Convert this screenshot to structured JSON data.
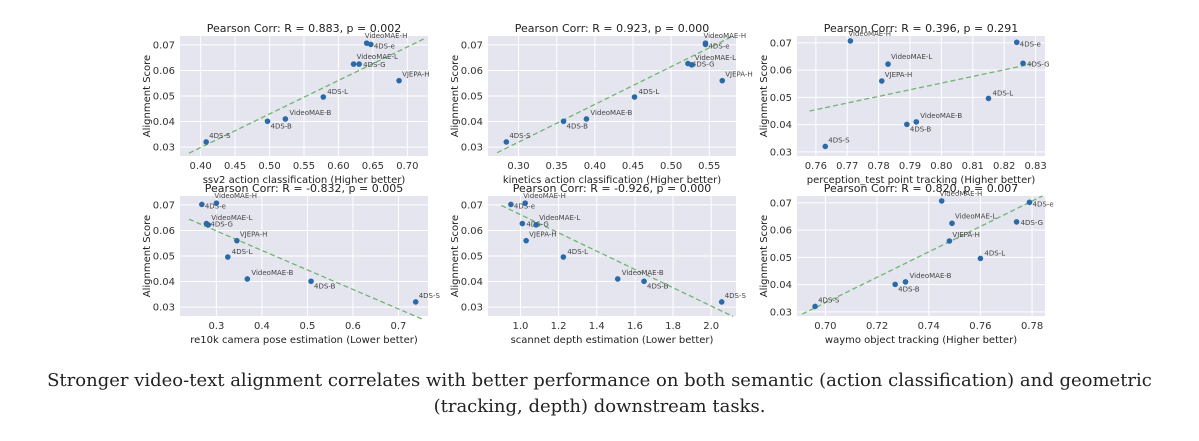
{
  "caption": "Stronger video-text alignment correlates with better performance on both semantic (action classification) and geometric (tracking, depth) downstream tasks.",
  "style": {
    "plot_bg": "#e5e5ef",
    "grid": "#ffffff",
    "point": "#2a6aa6",
    "trend": "#6fb56f",
    "label": "#444444"
  },
  "chart_data": [
    {
      "type": "scatter",
      "title": "Pearson Corr: R = 0.883, p = 0.002",
      "xlabel": "ssv2 action classification (Higher better)",
      "ylabel": "Alignment Score",
      "xlim": [
        0.37,
        0.73
      ],
      "ylim": [
        0.0265,
        0.0735
      ],
      "xticks": [
        0.4,
        0.45,
        0.5,
        0.55,
        0.6,
        0.65,
        0.7
      ],
      "xtick_labels": [
        "0.40",
        "0.45",
        "0.50",
        "0.55",
        "0.60",
        "0.65",
        "0.70"
      ],
      "yticks": [
        0.03,
        0.04,
        0.05,
        0.06,
        0.07
      ],
      "ytick_labels": [
        "0.03",
        "0.04",
        "0.05",
        "0.06",
        "0.07"
      ],
      "trend": [
        [
          0.383,
          0.0276
        ],
        [
          0.725,
          0.0725
        ]
      ],
      "points": [
        {
          "label": "VideoMAE-H",
          "x": 0.641,
          "y": 0.0707
        },
        {
          "label": "4DS-e",
          "x": 0.647,
          "y": 0.0702
        },
        {
          "label": "VideoMAE-L",
          "x": 0.622,
          "y": 0.0625
        },
        {
          "label": "4DS-G",
          "x": 0.63,
          "y": 0.0625
        },
        {
          "label": "VJEPA-H",
          "x": 0.688,
          "y": 0.056
        },
        {
          "label": "4DS-L",
          "x": 0.578,
          "y": 0.0496
        },
        {
          "label": "VideoMAE-B",
          "x": 0.523,
          "y": 0.041
        },
        {
          "label": "4DS-B",
          "x": 0.497,
          "y": 0.0401
        },
        {
          "label": "4DS-S",
          "x": 0.408,
          "y": 0.032
        }
      ]
    },
    {
      "type": "scatter",
      "title": "Pearson Corr: R = 0.923, p = 0.000",
      "xlabel": "kinetics action classification (Higher better)",
      "ylabel": "Alignment Score",
      "xlim": [
        0.26,
        0.585
      ],
      "ylim": [
        0.0265,
        0.0735
      ],
      "xticks": [
        0.3,
        0.35,
        0.4,
        0.45,
        0.5,
        0.55
      ],
      "xtick_labels": [
        "0.30",
        "0.35",
        "0.40",
        "0.45",
        "0.50",
        "0.55"
      ],
      "yticks": [
        0.03,
        0.04,
        0.05,
        0.06,
        0.07
      ],
      "ytick_labels": [
        "0.03",
        "0.04",
        "0.05",
        "0.06",
        "0.07"
      ],
      "trend": [
        [
          0.272,
          0.0278
        ],
        [
          0.58,
          0.0733
        ]
      ],
      "points": [
        {
          "label": "VideoMAE-H",
          "x": 0.545,
          "y": 0.0707
        },
        {
          "label": "4DS-e",
          "x": 0.545,
          "y": 0.0702
        },
        {
          "label": "4DS-G",
          "x": 0.522,
          "y": 0.0627
        },
        {
          "label": "VideoMAE-L",
          "x": 0.527,
          "y": 0.0622
        },
        {
          "label": "VJEPA-H",
          "x": 0.567,
          "y": 0.056
        },
        {
          "label": "4DS-L",
          "x": 0.452,
          "y": 0.0496
        },
        {
          "label": "VideoMAE-B",
          "x": 0.389,
          "y": 0.041
        },
        {
          "label": "4DS-B",
          "x": 0.359,
          "y": 0.0401
        },
        {
          "label": "4DS-S",
          "x": 0.284,
          "y": 0.032
        }
      ]
    },
    {
      "type": "scatter",
      "title": "Pearson Corr: R = 0.396, p = 0.291",
      "xlabel": "perception_test point tracking (Higher better)",
      "ylabel": "Alignment Score",
      "xlim": [
        0.754,
        0.833
      ],
      "ylim": [
        0.0285,
        0.0725
      ],
      "xticks": [
        0.76,
        0.77,
        0.78,
        0.79,
        0.8,
        0.81,
        0.82,
        0.83
      ],
      "xtick_labels": [
        "0.76",
        "0.77",
        "0.78",
        "0.79",
        "0.80",
        "0.81",
        "0.82",
        "0.83"
      ],
      "yticks": [
        0.03,
        0.04,
        0.05,
        0.06,
        0.07
      ],
      "ytick_labels": [
        "0.03",
        "0.04",
        "0.05",
        "0.06",
        "0.07"
      ],
      "trend": [
        [
          0.758,
          0.045
        ],
        [
          0.829,
          0.0623
        ]
      ],
      "points": [
        {
          "label": "VideoMAE-H",
          "x": 0.771,
          "y": 0.0707
        },
        {
          "label": "4DS-e",
          "x": 0.824,
          "y": 0.0702
        },
        {
          "label": "VideoMAE-L",
          "x": 0.783,
          "y": 0.0622
        },
        {
          "label": "4DS-G",
          "x": 0.826,
          "y": 0.0625
        },
        {
          "label": "VJEPA-H",
          "x": 0.781,
          "y": 0.056
        },
        {
          "label": "4DS-L",
          "x": 0.815,
          "y": 0.0496
        },
        {
          "label": "4DS-B",
          "x": 0.789,
          "y": 0.0401
        },
        {
          "label": "VideoMAE-B",
          "x": 0.792,
          "y": 0.041
        },
        {
          "label": "4DS-S",
          "x": 0.763,
          "y": 0.032
        }
      ]
    },
    {
      "type": "scatter",
      "title": "Pearson Corr: R = -0.832, p = 0.005",
      "xlabel": "re10k camera pose estimation (Lower better)",
      "ylabel": "Alignment Score",
      "xlim": [
        0.22,
        0.765
      ],
      "ylim": [
        0.0265,
        0.0735
      ],
      "xticks": [
        0.3,
        0.4,
        0.5,
        0.6,
        0.7
      ],
      "xtick_labels": [
        "0.3",
        "0.4",
        "0.5",
        "0.6",
        "0.7"
      ],
      "yticks": [
        0.03,
        0.04,
        0.05,
        0.06,
        0.07
      ],
      "ytick_labels": [
        "0.03",
        "0.04",
        "0.05",
        "0.06",
        "0.07"
      ],
      "trend": [
        [
          0.24,
          0.0644
        ],
        [
          0.752,
          0.0253
        ]
      ],
      "points": [
        {
          "label": "4DS-e",
          "x": 0.268,
          "y": 0.0702
        },
        {
          "label": "VideoMAE-H",
          "x": 0.3,
          "y": 0.0707
        },
        {
          "label": "4DS-G",
          "x": 0.278,
          "y": 0.0627
        },
        {
          "label": "VideoMAE-L",
          "x": 0.282,
          "y": 0.0622
        },
        {
          "label": "VJEPA-H",
          "x": 0.345,
          "y": 0.056
        },
        {
          "label": "4DS-L",
          "x": 0.325,
          "y": 0.0496
        },
        {
          "label": "VideoMAE-B",
          "x": 0.368,
          "y": 0.041
        },
        {
          "label": "4DS-B",
          "x": 0.508,
          "y": 0.0401
        },
        {
          "label": "4DS-S",
          "x": 0.738,
          "y": 0.032
        }
      ]
    },
    {
      "type": "scatter",
      "title": "Pearson Corr: R = -0.926, p = 0.000",
      "xlabel": "scannet depth estimation (Lower better)",
      "ylabel": "Alignment Score",
      "xlim": [
        0.83,
        2.13
      ],
      "ylim": [
        0.0265,
        0.0735
      ],
      "xticks": [
        1.0,
        1.2,
        1.4,
        1.6,
        1.8,
        2.0
      ],
      "xtick_labels": [
        "1.0",
        "1.2",
        "1.4",
        "1.6",
        "1.8",
        "2.0"
      ],
      "yticks": [
        0.03,
        0.04,
        0.05,
        0.06,
        0.07
      ],
      "ytick_labels": [
        "0.03",
        "0.04",
        "0.05",
        "0.06",
        "0.07"
      ],
      "trend": [
        [
          0.9,
          0.0698
        ],
        [
          2.115,
          0.0263
        ]
      ],
      "points": [
        {
          "label": "4DS-e",
          "x": 0.95,
          "y": 0.0702
        },
        {
          "label": "VideoMAE-H",
          "x": 1.025,
          "y": 0.0707
        },
        {
          "label": "4DS-G",
          "x": 1.01,
          "y": 0.0627
        },
        {
          "label": "VideoMAE-L",
          "x": 1.082,
          "y": 0.0622
        },
        {
          "label": "VJEPA-H",
          "x": 1.03,
          "y": 0.056
        },
        {
          "label": "4DS-L",
          "x": 1.225,
          "y": 0.0496
        },
        {
          "label": "VideoMAE-B",
          "x": 1.51,
          "y": 0.041
        },
        {
          "label": "4DS-B",
          "x": 1.648,
          "y": 0.0401
        },
        {
          "label": "4DS-S",
          "x": 2.055,
          "y": 0.032
        }
      ]
    },
    {
      "type": "scatter",
      "title": "Pearson Corr: R = 0.820, p = 0.007",
      "xlabel": "waymo object tracking (Higher better)",
      "ylabel": "Alignment Score",
      "xlim": [
        0.689,
        0.785
      ],
      "ylim": [
        0.0285,
        0.0725
      ],
      "xticks": [
        0.7,
        0.72,
        0.74,
        0.76,
        0.78
      ],
      "xtick_labels": [
        "0.70",
        "0.72",
        "0.74",
        "0.76",
        "0.78"
      ],
      "yticks": [
        0.03,
        0.04,
        0.05,
        0.06,
        0.07
      ],
      "ytick_labels": [
        "0.03",
        "0.04",
        "0.05",
        "0.06",
        "0.07"
      ],
      "trend": [
        [
          0.691,
          0.0292
        ],
        [
          0.784,
          0.0725
        ]
      ],
      "points": [
        {
          "label": "VideoMAE-H",
          "x": 0.745,
          "y": 0.0707
        },
        {
          "label": "4DS-e",
          "x": 0.779,
          "y": 0.0702
        },
        {
          "label": "VideoMAE-L",
          "x": 0.749,
          "y": 0.0625
        },
        {
          "label": "4DS-G",
          "x": 0.774,
          "y": 0.063
        },
        {
          "label": "VJEPA-H",
          "x": 0.748,
          "y": 0.056
        },
        {
          "label": "4DS-L",
          "x": 0.76,
          "y": 0.0496
        },
        {
          "label": "4DS-B",
          "x": 0.727,
          "y": 0.0401
        },
        {
          "label": "VideoMAE-B",
          "x": 0.731,
          "y": 0.041
        },
        {
          "label": "4DS-S",
          "x": 0.696,
          "y": 0.032
        }
      ]
    }
  ]
}
